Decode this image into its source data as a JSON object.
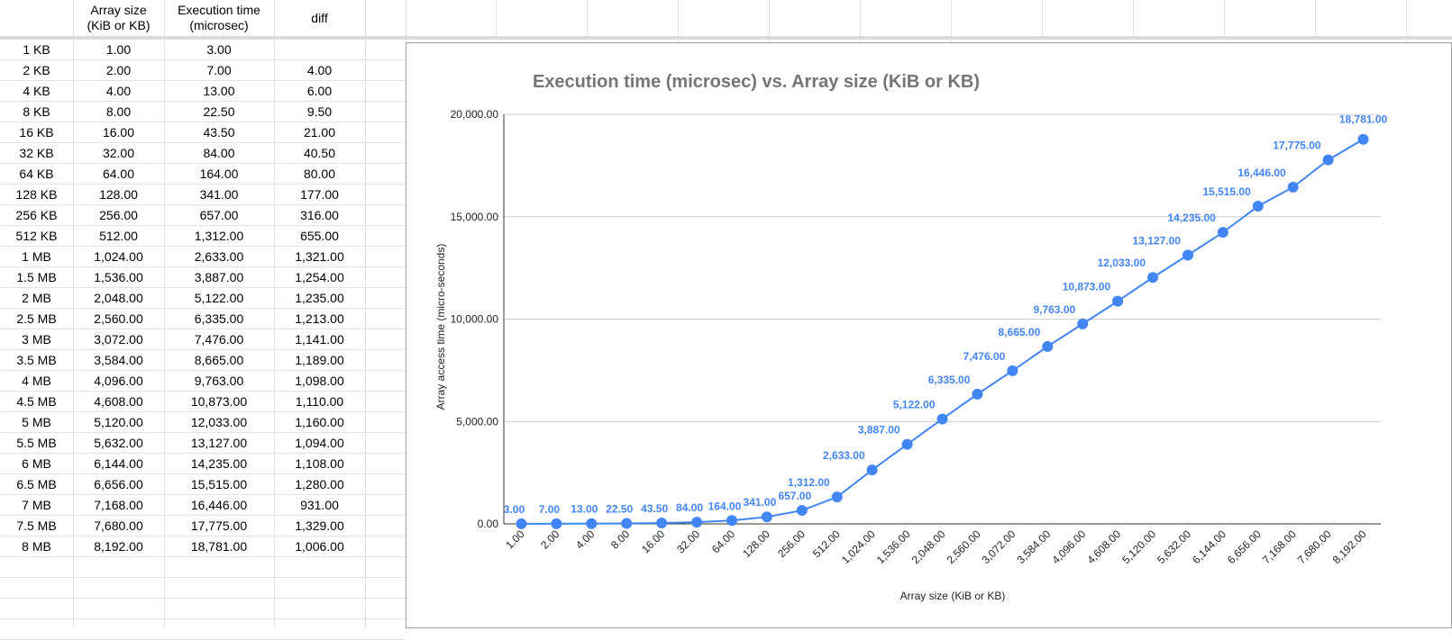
{
  "sheet": {
    "headers": [
      {
        "key": "size_label",
        "text": ""
      },
      {
        "key": "array_size",
        "text": "Array size\n(KiB or KB)"
      },
      {
        "key": "exec_time",
        "text": "Execution time\n(microsec)"
      },
      {
        "key": "diff",
        "text": "diff"
      }
    ],
    "rows": [
      [
        "1 KB",
        "1.00",
        "3.00",
        ""
      ],
      [
        "2 KB",
        "2.00",
        "7.00",
        "4.00"
      ],
      [
        "4 KB",
        "4.00",
        "13.00",
        "6.00"
      ],
      [
        "8 KB",
        "8.00",
        "22.50",
        "9.50"
      ],
      [
        "16 KB",
        "16.00",
        "43.50",
        "21.00"
      ],
      [
        "32 KB",
        "32.00",
        "84.00",
        "40.50"
      ],
      [
        "64 KB",
        "64.00",
        "164.00",
        "80.00"
      ],
      [
        "128 KB",
        "128.00",
        "341.00",
        "177.00"
      ],
      [
        "256 KB",
        "256.00",
        "657.00",
        "316.00"
      ],
      [
        "512 KB",
        "512.00",
        "1,312.00",
        "655.00"
      ],
      [
        "1 MB",
        "1,024.00",
        "2,633.00",
        "1,321.00"
      ],
      [
        "1.5 MB",
        "1,536.00",
        "3,887.00",
        "1,254.00"
      ],
      [
        "2 MB",
        "2,048.00",
        "5,122.00",
        "1,235.00"
      ],
      [
        "2.5 MB",
        "2,560.00",
        "6,335.00",
        "1,213.00"
      ],
      [
        "3 MB",
        "3,072.00",
        "7,476.00",
        "1,141.00"
      ],
      [
        "3.5 MB",
        "3,584.00",
        "8,665.00",
        "1,189.00"
      ],
      [
        "4 MB",
        "4,096.00",
        "9,763.00",
        "1,098.00"
      ],
      [
        "4.5 MB",
        "4,608.00",
        "10,873.00",
        "1,110.00"
      ],
      [
        "5 MB",
        "5,120.00",
        "12,033.00",
        "1,160.00"
      ],
      [
        "5.5 MB",
        "5,632.00",
        "13,127.00",
        "1,094.00"
      ],
      [
        "6 MB",
        "6,144.00",
        "14,235.00",
        "1,108.00"
      ],
      [
        "6.5 MB",
        "6,656.00",
        "15,515.00",
        "1,280.00"
      ],
      [
        "7 MB",
        "7,168.00",
        "16,446.00",
        "931.00"
      ],
      [
        "7.5 MB",
        "7,680.00",
        "17,775.00",
        "1,329.00"
      ],
      [
        "8 MB",
        "8,192.00",
        "18,781.00",
        "1,006.00"
      ]
    ]
  },
  "chart_data": {
    "type": "line",
    "title": "Execution time (microsec) vs. Array size (KiB or KB)",
    "xlabel": "Array size (KiB or KB)",
    "ylabel": "Array access time (micro-seconds)",
    "ylim": [
      0,
      20000
    ],
    "yticks": [
      "0.00",
      "5,000.00",
      "10,000.00",
      "15,000.00",
      "20,000.00"
    ],
    "categories": [
      "1.00",
      "2.00",
      "4.00",
      "8.00",
      "16.00",
      "32.00",
      "64.00",
      "128.00",
      "256.00",
      "512.00",
      "1,024.00",
      "1,536.00",
      "2,048.00",
      "2,560.00",
      "3,072.00",
      "3,584.00",
      "4,096.00",
      "4,608.00",
      "5,120.00",
      "5,632.00",
      "6,144.00",
      "6,656.00",
      "7,168.00",
      "7,680.00",
      "8,192.00"
    ],
    "values": [
      3,
      7,
      13,
      22.5,
      43.5,
      84,
      164,
      341,
      657,
      1312,
      2633,
      3887,
      5122,
      6335,
      7476,
      8665,
      9763,
      10873,
      12033,
      13127,
      14235,
      15515,
      16446,
      17775,
      18781
    ],
    "data_labels": [
      "3.00",
      "7.00",
      "13.00",
      "22.50",
      "43.50",
      "84.00",
      "164.00",
      "341.00",
      "657.00",
      "1,312.00",
      "2,633.00",
      "3,887.00",
      "5,122.00",
      "6,335.00",
      "7,476.00",
      "8,665.00",
      "9,763.00",
      "10,873.00",
      "12,033.00",
      "13,127.00",
      "14,235.00",
      "15,515.00",
      "16,446.00",
      "17,775.00",
      "18,781.00"
    ],
    "grid": true,
    "color": "#4285f4"
  }
}
